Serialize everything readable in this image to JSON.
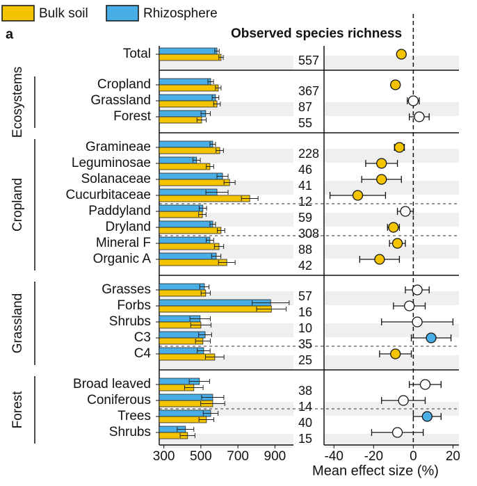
{
  "chart_data": {
    "type": "bar-forest",
    "panel_label": "a",
    "title": "Observed species richness",
    "x_label_right": "Mean effect size (%)",
    "groups": [
      {
        "categories": [
          "Total"
        ]
      },
      {
        "name": "Ecosystems",
        "categories": [
          "Cropland",
          "Grassland",
          "Forest"
        ]
      },
      {
        "name": "Cropland",
        "categories": [
          "Gramineae",
          "Leguminosae",
          "Solanaceae",
          "Cucurbitaceae",
          "Paddyland",
          "Dryland",
          "Mineral F",
          "Organic A"
        ]
      },
      {
        "name": "Grassland",
        "categories": [
          "Grasses",
          "Forbs",
          "Shrubs",
          "C3",
          "C4"
        ]
      },
      {
        "name": "Forest",
        "categories": [
          "Broad leaved",
          "Coniferous",
          "Trees",
          "Shrubs"
        ]
      }
    ],
    "series": [
      {
        "name": "Rhizosphere",
        "color": "#4aaee6",
        "values": [
          587,
          553,
          579,
          526,
          564,
          477,
          617,
          587,
          511,
          564,
          549,
          583,
          519,
          877,
          496,
          523,
          515,
          492,
          564,
          553,
          417
        ],
        "errors": [
          12,
          15,
          18,
          25,
          15,
          20,
          30,
          60,
          20,
          15,
          20,
          25,
          25,
          100,
          55,
          35,
          35,
          55,
          60,
          40,
          45
        ]
      },
      {
        "name": "Bulk soil",
        "color": "#f5c400",
        "values": [
          609,
          594,
          587,
          504,
          602,
          549,
          655,
          764,
          508,
          609,
          598,
          640,
          526,
          881,
          500,
          511,
          575,
          462,
          564,
          530,
          428
        ],
        "errors": [
          12,
          15,
          18,
          25,
          20,
          20,
          30,
          45,
          20,
          20,
          25,
          45,
          25,
          80,
          55,
          40,
          50,
          50,
          65,
          40,
          40
        ]
      }
    ],
    "counts": [
      557,
      367,
      87,
      55,
      228,
      46,
      41,
      12,
      59,
      308,
      88,
      42,
      57,
      16,
      10,
      35,
      25,
      38,
      14,
      40,
      15
    ],
    "effect": {
      "values": [
        -6,
        -9,
        0,
        3,
        -7,
        -16,
        -16,
        -28,
        -4,
        -10,
        -8,
        -17,
        2,
        -2,
        2,
        9,
        -9,
        6,
        -5,
        7,
        -8
      ],
      "errors": [
        1.5,
        2,
        3,
        5,
        2.5,
        8,
        10,
        14,
        4,
        3,
        4,
        10,
        6,
        8,
        18,
        10,
        8,
        8,
        11,
        7,
        13
      ],
      "colors": [
        "#f5c400",
        "#f5c400",
        "#ffffff",
        "#ffffff",
        "#f5c400",
        "#f5c400",
        "#f5c400",
        "#f5c400",
        "#ffffff",
        "#f5c400",
        "#f5c400",
        "#f5c400",
        "#ffffff",
        "#ffffff",
        "#ffffff",
        "#4aaee6",
        "#f5c400",
        "#ffffff",
        "#ffffff",
        "#4aaee6",
        "#ffffff"
      ]
    },
    "xlim": [
      275,
      1000
    ],
    "xticks": [
      300,
      500,
      700,
      900
    ],
    "x2lim": [
      -45,
      23
    ],
    "x2ticks": [
      -40,
      -20,
      0,
      20
    ]
  }
}
